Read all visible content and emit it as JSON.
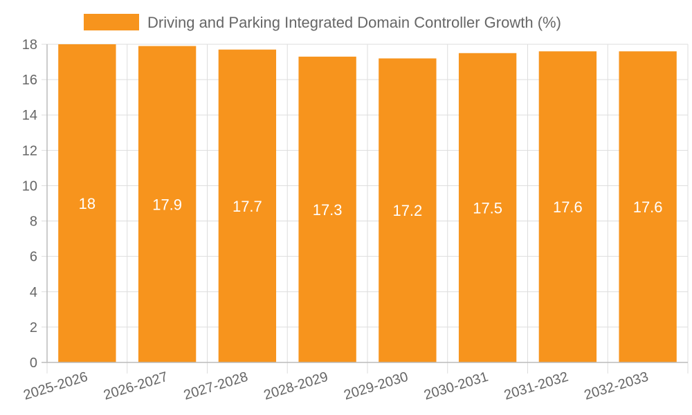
{
  "chart_data": {
    "type": "bar",
    "categories": [
      "2025-2026",
      "2026-2027",
      "2027-2028",
      "2028-2029",
      "2029-2030",
      "2030-2031",
      "2031-2032",
      "2032-2033"
    ],
    "series": [
      {
        "name": "Driving and Parking Integrated Domain Controller Growth (%)",
        "values": [
          18,
          17.9,
          17.7,
          17.3,
          17.2,
          17.5,
          17.6,
          17.6
        ]
      }
    ],
    "ylim": [
      0,
      18
    ],
    "yticks": [
      0,
      2,
      4,
      6,
      8,
      10,
      12,
      14,
      16,
      18
    ],
    "grid": true,
    "legend_position": "top",
    "data_labels": true,
    "colors": {
      "bar": "#F7941D",
      "data_label": "#ffffff",
      "text": "#666666",
      "grid": "#dddddd"
    }
  }
}
